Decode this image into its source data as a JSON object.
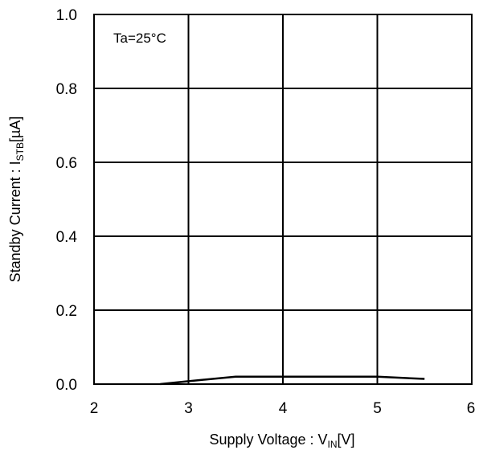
{
  "chart_data": {
    "type": "line",
    "xlabel": {
      "prefix": "Supply Voltage : V",
      "sub": "IN",
      "suffix": "[V]"
    },
    "ylabel": {
      "prefix": "Standby Current : I",
      "sub": "STB",
      "suffix": "[µA]"
    },
    "annotation": "Ta=25°C",
    "xlim": [
      2,
      6
    ],
    "ylim": [
      0,
      1.0
    ],
    "x_ticks": [
      2,
      3,
      4,
      5,
      6
    ],
    "x_tick_labels": [
      "2",
      "3",
      "4",
      "5",
      "6"
    ],
    "y_ticks": [
      0.0,
      0.2,
      0.4,
      0.6,
      0.8,
      1.0
    ],
    "y_tick_labels": [
      "0.0",
      "0.2",
      "0.4",
      "0.6",
      "0.8",
      "1.0"
    ],
    "grid": true,
    "legend": "none",
    "series": [
      {
        "color": "#000000",
        "x": [
          2.7,
          3.0,
          3.5,
          4.0,
          4.5,
          5.0,
          5.5
        ],
        "y": [
          0.0,
          0.008,
          0.02,
          0.02,
          0.02,
          0.02,
          0.014
        ]
      }
    ]
  }
}
